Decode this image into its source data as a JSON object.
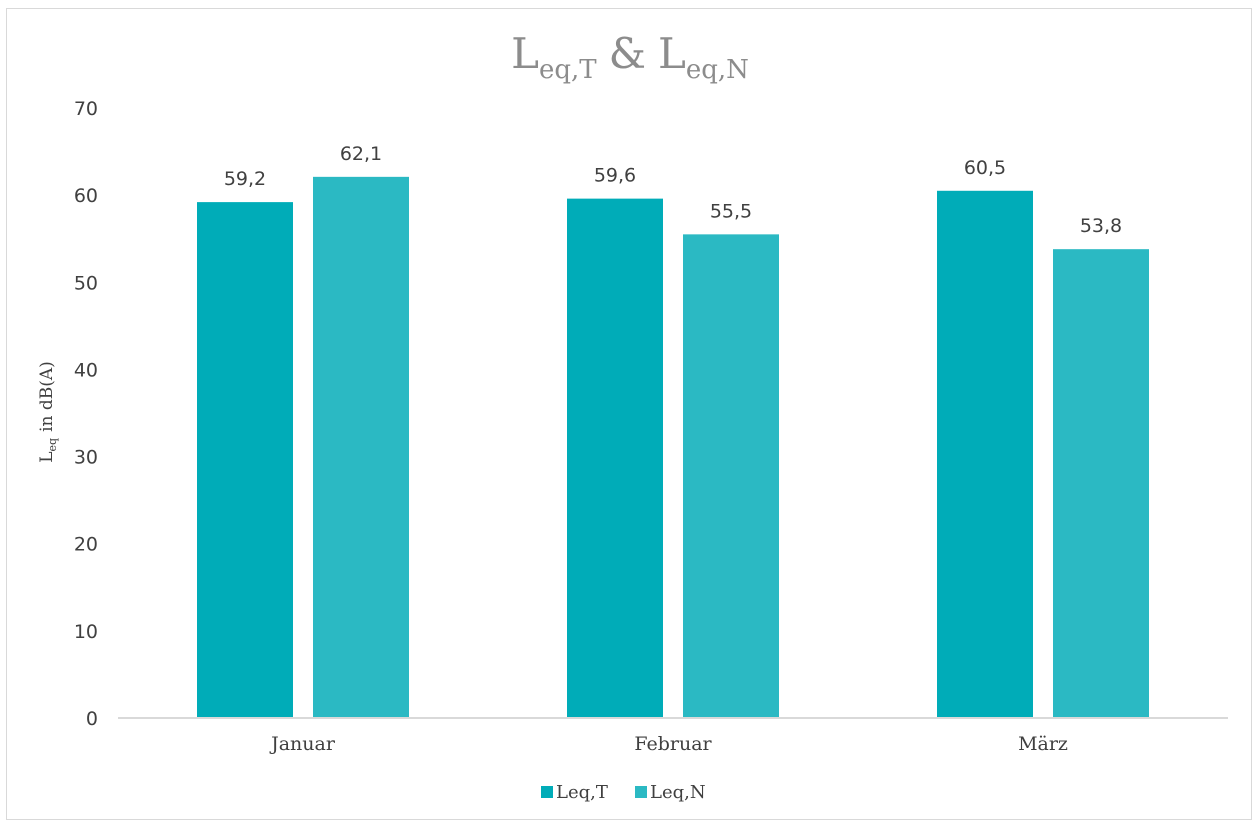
{
  "chart_data": {
    "type": "bar",
    "title": {
      "main": "L",
      "sub1": "eq,T",
      "amp": "&",
      "main2": "L",
      "sub2": "eq,N"
    },
    "ylabel": {
      "main": "L",
      "sub": "eq",
      "rest": "in dB(A)"
    },
    "categories": [
      "Januar",
      "Februar",
      "März"
    ],
    "series": [
      {
        "name": "Leq,T",
        "values": [
          59.2,
          59.6,
          60.5
        ],
        "labels": [
          "59,2",
          "59,6",
          "60,5"
        ],
        "color": "#00acb8"
      },
      {
        "name": "Leq,N",
        "values": [
          62.1,
          55.5,
          53.8
        ],
        "labels": [
          "62,1",
          "55,5",
          "53,8"
        ],
        "color": "#2bb9c3"
      }
    ],
    "yticks": [
      "0",
      "10",
      "20",
      "30",
      "40",
      "50",
      "60",
      "70"
    ],
    "ylim": [
      0,
      70
    ],
    "grid": false,
    "legend_position": "bottom"
  }
}
